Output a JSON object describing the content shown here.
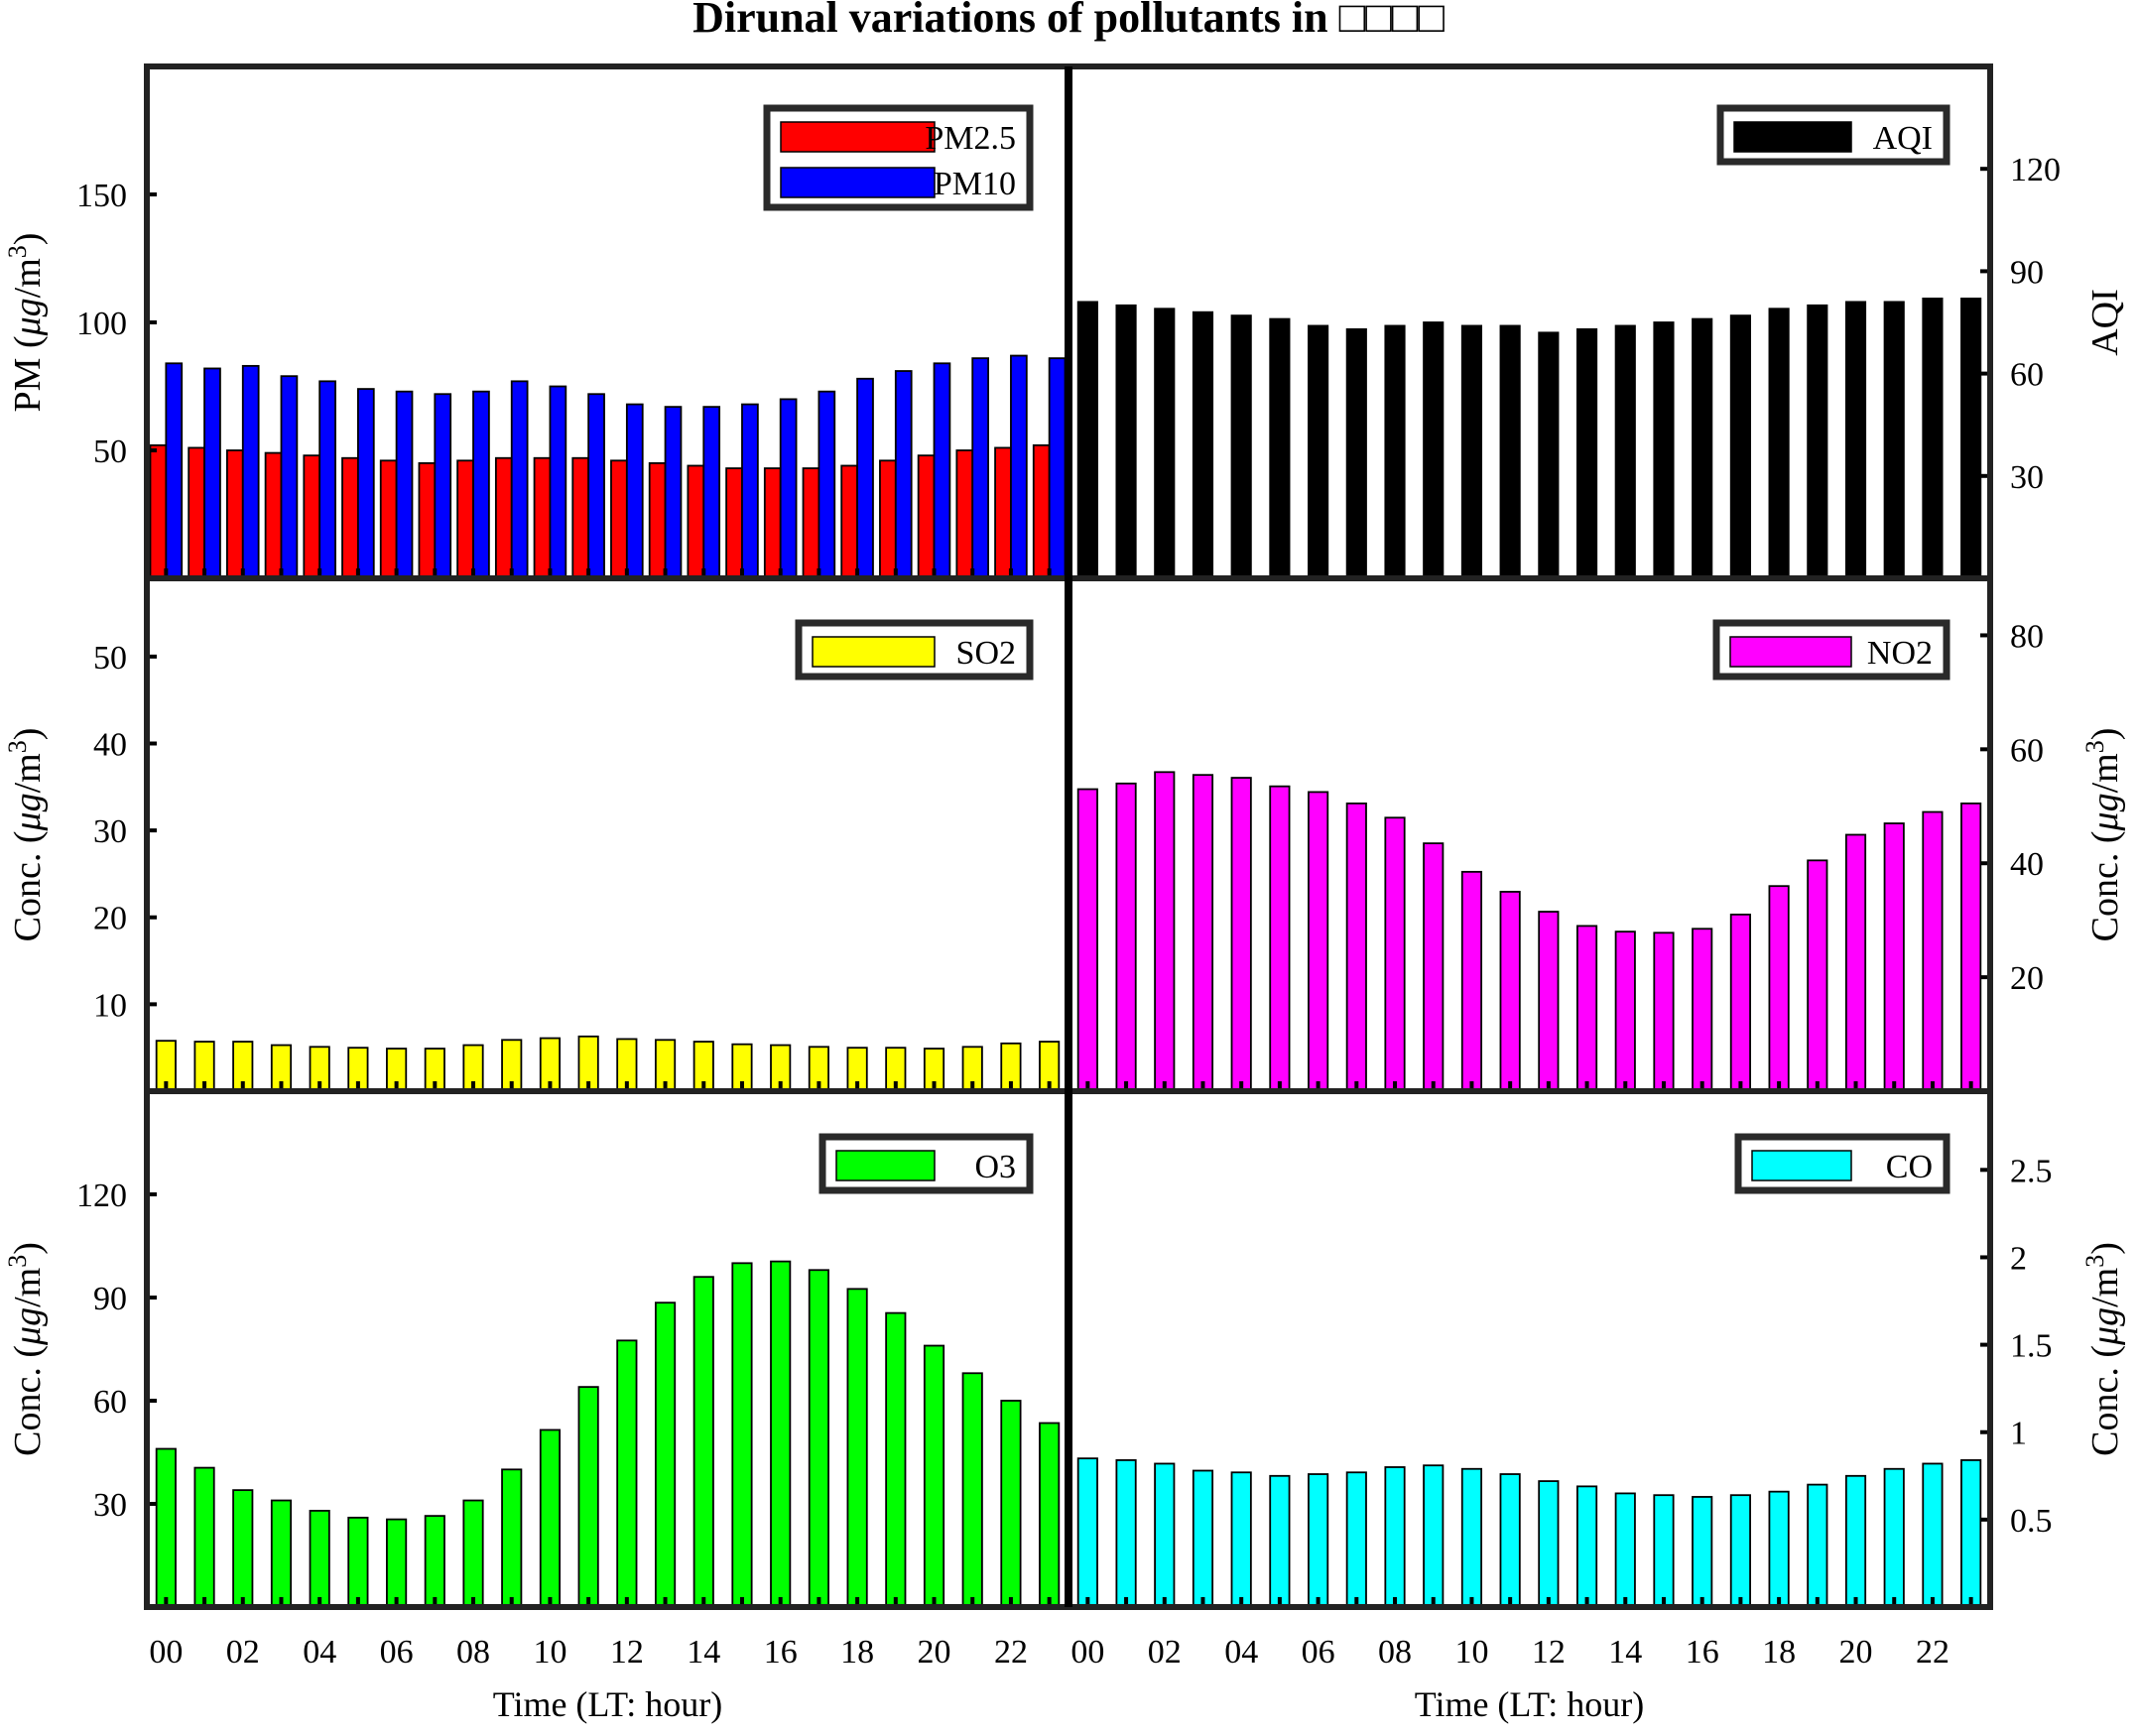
{
  "figure": {
    "title": "Dirunal variations of pollutants in □□□□"
  },
  "chart_data": [
    {
      "id": "pm",
      "type": "bar",
      "x": [
        0,
        1,
        2,
        3,
        4,
        5,
        6,
        7,
        8,
        9,
        10,
        11,
        12,
        13,
        14,
        15,
        16,
        17,
        18,
        19,
        20,
        21,
        22,
        23
      ],
      "xticklabels": [
        "00",
        "02",
        "04",
        "06",
        "08",
        "10",
        "12",
        "14",
        "16",
        "18",
        "20",
        "22"
      ],
      "xlabel": "",
      "ylabel_prefix": "PM (",
      "ylabel_mu": "μ",
      "ylabel_unit": "g/m",
      "ylabel_sup": "3",
      "ylabel_suffix": ")",
      "ylim": [
        0,
        200
      ],
      "yticks": [
        50,
        100,
        150
      ],
      "series": [
        {
          "name": "PM2.5",
          "color": "#ff0000",
          "values": [
            52,
            51,
            50,
            49,
            48,
            47,
            46,
            45,
            46,
            47,
            47,
            47,
            46,
            45,
            44,
            43,
            43,
            43,
            44,
            46,
            48,
            50,
            51,
            52
          ]
        },
        {
          "name": "PM10",
          "color": "#0000ff",
          "values": [
            84,
            82,
            83,
            79,
            77,
            74,
            73,
            72,
            73,
            77,
            75,
            72,
            68,
            67,
            67,
            68,
            70,
            73,
            78,
            81,
            84,
            86,
            87,
            86
          ]
        }
      ]
    },
    {
      "id": "aqi",
      "type": "bar",
      "x": [
        0,
        1,
        2,
        3,
        4,
        5,
        6,
        7,
        8,
        9,
        10,
        11,
        12,
        13,
        14,
        15,
        16,
        17,
        18,
        19,
        20,
        21,
        22,
        23
      ],
      "xticklabels": [
        "00",
        "02",
        "04",
        "06",
        "08",
        "10",
        "12",
        "14",
        "16",
        "18",
        "20",
        "22"
      ],
      "xlabel": "",
      "ylabel": "AQI",
      "ylim": [
        0,
        150
      ],
      "yticks": [
        30,
        60,
        90,
        120
      ],
      "series": [
        {
          "name": "AQI",
          "color": "#000000",
          "values": [
            81,
            80,
            79,
            78,
            77,
            76,
            74,
            73,
            74,
            75,
            74,
            74,
            72,
            73,
            74,
            75,
            76,
            77,
            79,
            80,
            81,
            81,
            82,
            82
          ]
        }
      ]
    },
    {
      "id": "so2",
      "type": "bar",
      "x": [
        0,
        1,
        2,
        3,
        4,
        5,
        6,
        7,
        8,
        9,
        10,
        11,
        12,
        13,
        14,
        15,
        16,
        17,
        18,
        19,
        20,
        21,
        22,
        23
      ],
      "xticklabels": [
        "00",
        "02",
        "04",
        "06",
        "08",
        "10",
        "12",
        "14",
        "16",
        "18",
        "20",
        "22"
      ],
      "xlabel": "",
      "ylabel_prefix": "Conc. (",
      "ylabel_mu": "μ",
      "ylabel_unit": "g/m",
      "ylabel_sup": "3",
      "ylabel_suffix": ")",
      "ylim": [
        0,
        59
      ],
      "yticks": [
        10,
        20,
        30,
        40,
        50
      ],
      "series": [
        {
          "name": "SO2",
          "color": "#ffff00",
          "values": [
            5.8,
            5.7,
            5.7,
            5.3,
            5.1,
            5.0,
            4.9,
            4.9,
            5.3,
            5.9,
            6.1,
            6.3,
            6.0,
            5.9,
            5.7,
            5.4,
            5.3,
            5.1,
            5.0,
            5.0,
            4.9,
            5.1,
            5.5,
            5.7
          ]
        }
      ]
    },
    {
      "id": "no2",
      "type": "bar",
      "x": [
        0,
        1,
        2,
        3,
        4,
        5,
        6,
        7,
        8,
        9,
        10,
        11,
        12,
        13,
        14,
        15,
        16,
        17,
        18,
        19,
        20,
        21,
        22,
        23
      ],
      "xticklabels": [
        "00",
        "02",
        "04",
        "06",
        "08",
        "10",
        "12",
        "14",
        "16",
        "18",
        "20",
        "22"
      ],
      "xlabel": "",
      "ylabel_prefix": "Conc. (",
      "ylabel_mu": "μ",
      "ylabel_unit": "g/m",
      "ylabel_sup": "3",
      "ylabel_suffix": ")",
      "ylim": [
        0,
        90
      ],
      "yticks": [
        20,
        40,
        60,
        80
      ],
      "series": [
        {
          "name": "NO2",
          "color": "#ff00ff",
          "values": [
            53,
            54,
            56,
            55.5,
            55,
            53.5,
            52.5,
            50.5,
            48,
            43.5,
            38.5,
            35,
            31.5,
            29,
            28,
            27.8,
            28.5,
            31,
            36,
            40.5,
            45,
            47,
            49,
            50.5
          ]
        }
      ]
    },
    {
      "id": "o3",
      "type": "bar",
      "x": [
        0,
        1,
        2,
        3,
        4,
        5,
        6,
        7,
        8,
        9,
        10,
        11,
        12,
        13,
        14,
        15,
        16,
        17,
        18,
        19,
        20,
        21,
        22,
        23
      ],
      "xticklabels": [
        "00",
        "02",
        "04",
        "06",
        "08",
        "10",
        "12",
        "14",
        "16",
        "18",
        "20",
        "22"
      ],
      "xlabel": "Time (LT: hour)",
      "ylabel_prefix": "Conc. (",
      "ylabel_mu": "μ",
      "ylabel_unit": "g/m",
      "ylabel_sup": "3",
      "ylabel_suffix": ")",
      "ylim": [
        0,
        150
      ],
      "yticks": [
        30,
        60,
        90,
        120
      ],
      "series": [
        {
          "name": "O3",
          "color": "#00ff00",
          "values": [
            46,
            40.5,
            34,
            31,
            28,
            26,
            25.5,
            26.5,
            31,
            40,
            51.5,
            64,
            77.5,
            88.5,
            96,
            100,
            100.5,
            98,
            92.5,
            85.5,
            76,
            68,
            60,
            53.5
          ]
        }
      ]
    },
    {
      "id": "co",
      "type": "bar",
      "x": [
        0,
        1,
        2,
        3,
        4,
        5,
        6,
        7,
        8,
        9,
        10,
        11,
        12,
        13,
        14,
        15,
        16,
        17,
        18,
        19,
        20,
        21,
        22,
        23
      ],
      "xticklabels": [
        "00",
        "02",
        "04",
        "06",
        "08",
        "10",
        "12",
        "14",
        "16",
        "18",
        "20",
        "22"
      ],
      "xlabel": "Time (LT: hour)",
      "ylabel_prefix": "Conc. (",
      "ylabel_mu": "μ",
      "ylabel_unit": "g/m",
      "ylabel_sup": "3",
      "ylabel_suffix": ")",
      "ylim": [
        0,
        2.95
      ],
      "yticks": [
        0.5,
        1,
        1.5,
        2,
        2.5
      ],
      "series": [
        {
          "name": "CO",
          "color": "#00ffff",
          "values": [
            0.85,
            0.84,
            0.82,
            0.78,
            0.77,
            0.75,
            0.76,
            0.77,
            0.8,
            0.81,
            0.79,
            0.76,
            0.72,
            0.69,
            0.65,
            0.64,
            0.63,
            0.64,
            0.66,
            0.7,
            0.75,
            0.79,
            0.82,
            0.84
          ]
        }
      ]
    }
  ]
}
